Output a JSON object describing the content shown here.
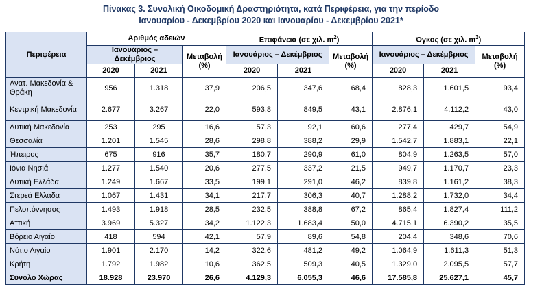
{
  "title_line1": "Πίνακας 3. Συνολική Οικοδομική Δραστηριότητα, κατά Περιφέρεια, για την περίοδο",
  "title_line2": "Ιανουαρίου - Δεκεμβρίου 2020 και Ιανουαρίου - Δεκεμβρίου 2021*",
  "header": {
    "region": "Περιφέρεια",
    "permits": "Αριθμός αδειών",
    "area": "Επιφάνεια (σε χιλ. m2)",
    "volume": "Όγκος (σε χιλ. m3)",
    "period": "Ιανουάριος – Δεκέμβριος",
    "change": "Μεταβολή (%)",
    "y2020": "2020",
    "y2021": "2021"
  },
  "rows": [
    {
      "name": "Ανατ. Μακεδονία & Θράκη",
      "v": [
        "956",
        "1.318",
        "37,9",
        "206,5",
        "347,6",
        "68,4",
        "828,3",
        "1.601,5",
        "93,4"
      ]
    },
    {
      "name": "Κεντρική Μακεδονία",
      "v": [
        "2.677",
        "3.267",
        "22,0",
        "593,8",
        "849,5",
        "43,1",
        "2.876,1",
        "4.112,2",
        "43,0"
      ]
    },
    {
      "name": "Δυτική Μακεδονία",
      "v": [
        "253",
        "295",
        "16,6",
        "57,3",
        "92,1",
        "60,6",
        "277,4",
        "429,7",
        "54,9"
      ]
    },
    {
      "name": "Θεσσαλία",
      "v": [
        "1.201",
        "1.545",
        "28,6",
        "298,8",
        "388,2",
        "29,9",
        "1.542,7",
        "1.883,1",
        "22,1"
      ]
    },
    {
      "name": "Ήπειρος",
      "v": [
        "675",
        "916",
        "35,7",
        "180,7",
        "290,9",
        "61,0",
        "804,9",
        "1.263,5",
        "57,0"
      ]
    },
    {
      "name": "Ιόνια Νησιά",
      "v": [
        "1.277",
        "1.540",
        "20,6",
        "277,5",
        "337,2",
        "21,5",
        "949,7",
        "1.170,7",
        "23,3"
      ]
    },
    {
      "name": "Δυτική Ελλάδα",
      "v": [
        "1.249",
        "1.667",
        "33,5",
        "199,1",
        "291,0",
        "46,2",
        "839,8",
        "1.161,2",
        "38,3"
      ]
    },
    {
      "name": "Στερεά Ελλάδα",
      "v": [
        "1.067",
        "1.431",
        "34,1",
        "217,7",
        "306,3",
        "40,7",
        "1.288,2",
        "1.732,0",
        "34,4"
      ]
    },
    {
      "name": "Πελοπόννησος",
      "v": [
        "1.493",
        "1.918",
        "28,5",
        "232,5",
        "388,8",
        "67,2",
        "865,4",
        "1.827,4",
        "111,2"
      ]
    },
    {
      "name": "Αττική",
      "v": [
        "3.969",
        "5.327",
        "34,2",
        "1.122,3",
        "1.683,4",
        "50,0",
        "4.715,1",
        "6.390,2",
        "35,5"
      ]
    },
    {
      "name": "Βόρειο Αιγαίο",
      "v": [
        "418",
        "594",
        "42,1",
        "57,9",
        "89,6",
        "54,8",
        "204,4",
        "348,6",
        "70,6"
      ]
    },
    {
      "name": "Νότιο Αιγαίο",
      "v": [
        "1.901",
        "2.170",
        "14,2",
        "322,6",
        "481,2",
        "49,2",
        "1.064,9",
        "1.611,3",
        "51,3"
      ]
    },
    {
      "name": "Κρήτη",
      "v": [
        "1.792",
        "1.982",
        "10,6",
        "362,5",
        "509,3",
        "40,5",
        "1.329,0",
        "2.095,5",
        "57,7"
      ]
    },
    {
      "name": "Σύνολο Χώρας",
      "v": [
        "18.928",
        "23.970",
        "26,6",
        "4.129,3",
        "6.055,3",
        "46,6",
        "17.585,8",
        "25.627,1",
        "45,7"
      ]
    }
  ]
}
